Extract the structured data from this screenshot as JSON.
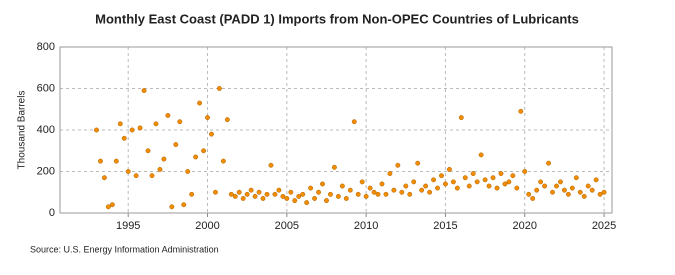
{
  "chart_data": {
    "type": "scatter",
    "title": "Monthly East Coast (PADD 1) Imports from Non-OPEC Countries of Lubricants",
    "y_label": "Thousand Barrels",
    "source": "Source: U.S. Energy Information Administration",
    "color": "#f28c00",
    "grid": true,
    "xlim": [
      1990.7,
      2025.5
    ],
    "xticks": [
      1995,
      2000,
      2005,
      2010,
      2015,
      2020,
      2025
    ],
    "ylim": [
      0,
      800
    ],
    "yticks": [
      0,
      200,
      400,
      600,
      800
    ],
    "x": [
      1993,
      1993.25,
      1993.5,
      1993.75,
      1994,
      1994.25,
      1994.5,
      1994.75,
      1995,
      1995.25,
      1995.5,
      1995.75,
      1996,
      1996.25,
      1996.5,
      1996.75,
      1997,
      1997.25,
      1997.5,
      1997.75,
      1998,
      1998.25,
      1998.5,
      1998.75,
      1999,
      1999.25,
      1999.5,
      1999.75,
      2000,
      2000.25,
      2000.5,
      2000.75,
      2001,
      2001.25,
      2001.5,
      2001.75,
      2002,
      2002.25,
      2002.5,
      2002.75,
      2003,
      2003.25,
      2003.5,
      2003.75,
      2004,
      2004.25,
      2004.5,
      2004.75,
      2005,
      2005.25,
      2005.5,
      2005.75,
      2006,
      2006.25,
      2006.5,
      2006.75,
      2007,
      2007.25,
      2007.5,
      2007.75,
      2008,
      2008.25,
      2008.5,
      2008.75,
      2009,
      2009.25,
      2009.5,
      2009.75,
      2010,
      2010.25,
      2010.5,
      2010.75,
      2011,
      2011.25,
      2011.5,
      2011.75,
      2012,
      2012.25,
      2012.5,
      2012.75,
      2013,
      2013.25,
      2013.5,
      2013.75,
      2014,
      2014.25,
      2014.5,
      2014.75,
      2015,
      2015.25,
      2015.5,
      2015.75,
      2016,
      2016.25,
      2016.5,
      2016.75,
      2017,
      2017.25,
      2017.5,
      2017.75,
      2018,
      2018.25,
      2018.5,
      2018.75,
      2019,
      2019.25,
      2019.5,
      2019.75,
      2020,
      2020.25,
      2020.5,
      2020.75,
      2021,
      2021.25,
      2021.5,
      2021.75,
      2022,
      2022.25,
      2022.5,
      2022.75,
      2023,
      2023.25,
      2023.5,
      2023.75,
      2024,
      2024.25,
      2024.5,
      2024.75,
      2025
    ],
    "values": [
      400,
      250,
      170,
      30,
      40,
      250,
      430,
      360,
      200,
      400,
      180,
      410,
      590,
      300,
      180,
      430,
      210,
      260,
      470,
      30,
      330,
      440,
      40,
      200,
      90,
      270,
      530,
      300,
      460,
      380,
      100,
      600,
      250,
      450,
      90,
      80,
      100,
      70,
      90,
      110,
      80,
      100,
      70,
      90,
      230,
      90,
      110,
      80,
      70,
      100,
      60,
      80,
      90,
      50,
      120,
      70,
      100,
      140,
      60,
      90,
      220,
      80,
      130,
      70,
      110,
      440,
      90,
      150,
      80,
      120,
      100,
      90,
      140,
      90,
      190,
      110,
      230,
      100,
      130,
      90,
      150,
      240,
      110,
      130,
      100,
      160,
      120,
      180,
      140,
      210,
      150,
      120,
      460,
      170,
      130,
      190,
      150,
      280,
      160,
      130,
      170,
      120,
      190,
      140,
      150,
      180,
      120,
      490,
      200,
      90,
      70,
      110,
      150,
      130,
      240,
      100,
      130,
      150,
      110,
      90,
      120,
      170,
      100,
      80,
      130,
      110,
      160,
      90,
      100
    ]
  }
}
